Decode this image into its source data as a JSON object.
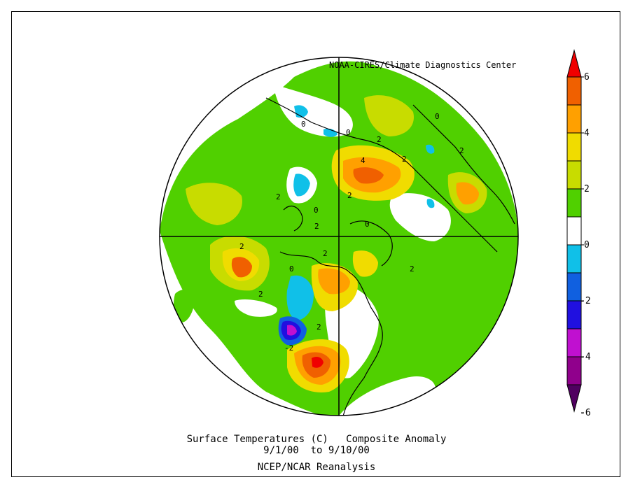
{
  "map": {
    "credit": "NOAA-CIRES/Climate Diagnostics Center",
    "projection": "north-polar-stereographic",
    "variable": "Surface Temperatures (C)",
    "contour_labels": [
      "0",
      "0",
      "2",
      "2",
      "2",
      "2",
      "2",
      "2",
      "4",
      "2",
      "0",
      "0",
      "0",
      "2",
      "2",
      "2",
      "-2",
      "2",
      "0"
    ]
  },
  "caption": {
    "line1": "Surface Temperatures (C)   Composite Anomaly",
    "line2": "9/1/00  to 9/10/00",
    "line3": "NCEP/NCAR Reanalysis"
  },
  "colorbar": {
    "ticks": [
      "6",
      "4",
      "2",
      "0",
      "-2",
      "-4",
      "-6"
    ],
    "colors": [
      "#f00000",
      "#f06000",
      "#ffa000",
      "#f0dc00",
      "#c8dc00",
      "#50d000",
      "#ffffff",
      "#10c0e8",
      "#1060e0",
      "#2010e0",
      "#c010d0",
      "#90008c",
      "#500060"
    ]
  }
}
